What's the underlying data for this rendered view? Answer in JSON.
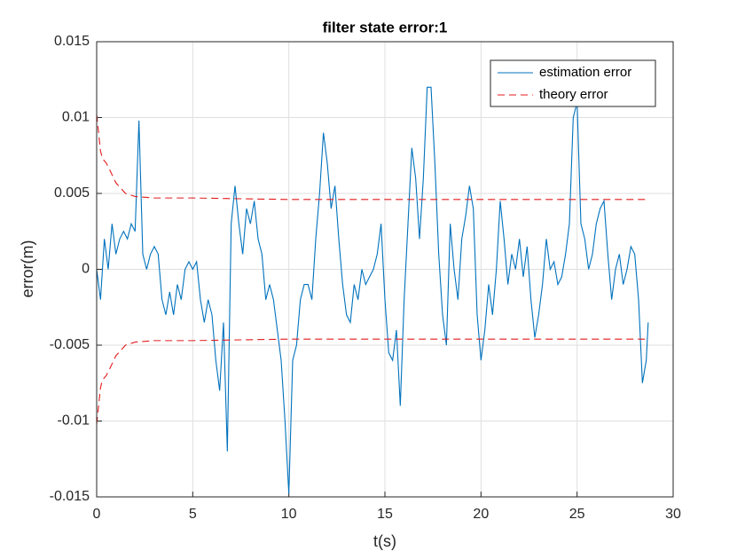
{
  "chart_data": {
    "type": "line",
    "title": "filter state error:1",
    "x_label": "t(s)",
    "y_label": "error(m)",
    "xlim": [
      0,
      30
    ],
    "xticks": [
      0,
      5,
      10,
      15,
      20,
      25,
      30
    ],
    "ylim": [
      -0.015,
      0.015
    ],
    "yticks": [
      -0.015,
      -0.01,
      -0.005,
      0,
      0.005,
      0.01,
      0.015
    ],
    "grid": true,
    "legend": "top-right",
    "series": [
      {
        "name": "estimation error",
        "color": "#0072bd",
        "dash": "solid",
        "x": [
          0,
          0.2,
          0.4,
          0.6,
          0.8,
          1,
          1.2,
          1.4,
          1.6,
          1.8,
          2,
          2.2,
          2.4,
          2.6,
          2.8,
          3,
          3.2,
          3.4,
          3.6,
          3.8,
          4,
          4.2,
          4.4,
          4.6,
          4.8,
          5,
          5.2,
          5.4,
          5.6,
          5.8,
          6,
          6.2,
          6.4,
          6.6,
          6.8,
          7,
          7.2,
          7.4,
          7.6,
          7.8,
          8,
          8.2,
          8.4,
          8.6,
          8.8,
          9,
          9.2,
          9.4,
          9.6,
          9.8,
          10,
          10.2,
          10.4,
          10.6,
          10.8,
          11,
          11.2,
          11.4,
          11.6,
          11.8,
          12,
          12.2,
          12.4,
          12.6,
          12.8,
          13,
          13.2,
          13.4,
          13.6,
          13.8,
          14,
          14.2,
          14.4,
          14.6,
          14.8,
          15,
          15.2,
          15.4,
          15.6,
          15.8,
          16,
          16.2,
          16.4,
          16.6,
          16.8,
          17,
          17.2,
          17.4,
          17.6,
          17.8,
          18,
          18.2,
          18.4,
          18.6,
          18.8,
          19,
          19.2,
          19.4,
          19.6,
          19.8,
          20,
          20.2,
          20.4,
          20.6,
          20.8,
          21,
          21.2,
          21.4,
          21.6,
          21.8,
          22,
          22.2,
          22.4,
          22.6,
          22.8,
          23,
          23.2,
          23.4,
          23.6,
          23.8,
          24,
          24.2,
          24.4,
          24.6,
          24.8,
          25,
          25.2,
          25.4,
          25.6,
          25.8,
          26,
          26.2,
          26.4,
          26.6,
          26.8,
          27,
          27.2,
          27.4,
          27.6,
          27.8,
          28,
          28.2,
          28.4,
          28.6,
          28.7
        ],
        "values": [
          0,
          -0.002,
          0.002,
          0,
          0.003,
          0.001,
          0.002,
          0.0025,
          0.002,
          0.003,
          0.0025,
          0.0098,
          0.001,
          0,
          0.001,
          0.0015,
          0.001,
          -0.002,
          -0.003,
          -0.0015,
          -0.003,
          -0.001,
          -0.002,
          0,
          0.0005,
          0,
          0.0005,
          -0.002,
          -0.0035,
          -0.002,
          -0.003,
          -0.006,
          -0.008,
          -0.0035,
          -0.012,
          0.003,
          0.0055,
          0.003,
          0.001,
          0.004,
          0.003,
          0.0045,
          0.002,
          0.001,
          -0.002,
          -0.001,
          -0.002,
          -0.004,
          -0.006,
          -0.01,
          -0.0148,
          -0.006,
          -0.005,
          -0.002,
          -0.001,
          -0.001,
          -0.002,
          0.002,
          0.005,
          0.009,
          0.007,
          0.004,
          0.0055,
          0.002,
          -0.001,
          -0.003,
          -0.0035,
          -0.001,
          -0.002,
          0,
          -0.001,
          -0.0005,
          0,
          0.001,
          0.003,
          -0.002,
          -0.0055,
          -0.006,
          -0.004,
          -0.009,
          -0.002,
          0.003,
          0.008,
          0.006,
          0.002,
          0.006,
          0.012,
          0.012,
          0.007,
          0.001,
          -0.003,
          -0.005,
          0.003,
          0,
          -0.002,
          0.002,
          0.0035,
          0.0055,
          0.004,
          -0.003,
          -0.006,
          -0.004,
          -0.001,
          -0.003,
          0,
          0.0045,
          0.002,
          -0.001,
          0.001,
          0,
          0.002,
          -0.0005,
          0.0015,
          -0.002,
          -0.0045,
          -0.003,
          -0.001,
          0.002,
          0,
          0.0005,
          -0.001,
          -0.0005,
          0.001,
          0.003,
          0.01,
          0.011,
          0.003,
          0.002,
          0,
          0.001,
          0.003,
          0.004,
          0.0045,
          0.001,
          -0.002,
          0,
          0.001,
          -0.001,
          0,
          0.0015,
          0.001,
          -0.002,
          -0.0075,
          -0.006,
          -0.0035
        ]
      },
      {
        "name": "theory error",
        "color": "#e41a1c",
        "dash": "dashed",
        "x": [
          0,
          0.1,
          0.2,
          0.3,
          0.5,
          0.7,
          1,
          1.5,
          2,
          3,
          5,
          10,
          20,
          28.7
        ],
        "values": [
          0.0102,
          0.009,
          0.0078,
          0.0073,
          0.007,
          0.0065,
          0.0057,
          0.005,
          0.0048,
          0.0047,
          0.0047,
          0.0046,
          0.0046,
          0.0046
        ],
        "lower": [
          -0.0102,
          -0.009,
          -0.0078,
          -0.0073,
          -0.007,
          -0.0065,
          -0.0057,
          -0.005,
          -0.0048,
          -0.0047,
          -0.0047,
          -0.0046,
          -0.0046,
          -0.0046
        ]
      }
    ]
  }
}
